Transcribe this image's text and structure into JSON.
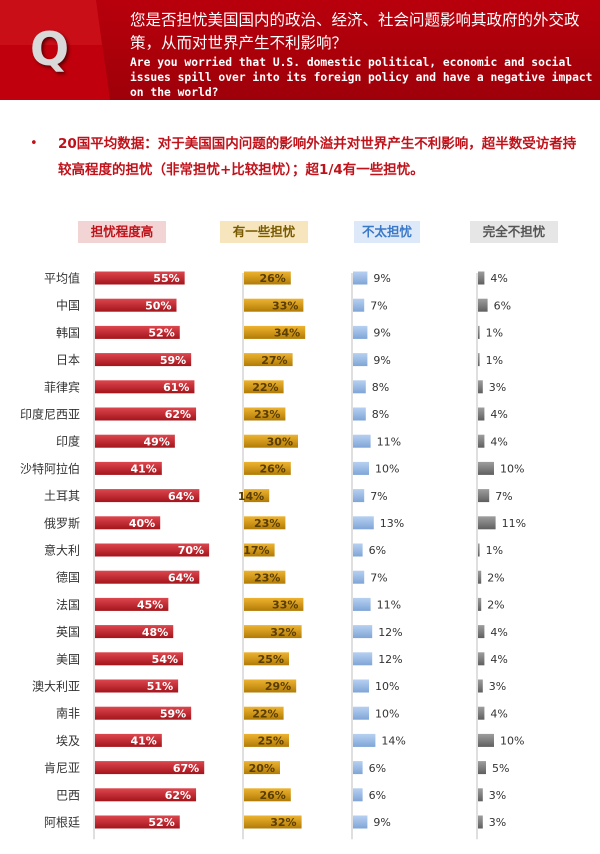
{
  "header": {
    "q_letter": "Q",
    "question_zh": "您是否担忧美国国内的政治、经济、社会问题影响其政府的外交政策，从而对世界产生不利影响？",
    "question_en": "Are you worried that U.S. domestic political, economic and social issues spill over into its foreign policy and have a negative impact on the world?"
  },
  "summary": {
    "bullet": "•",
    "text": "20国平均数据：对于美国国内问题的影响外溢并对世界产生不利影响，超半数受访者持较高程度的担忧（非常担忧+比较担忧）；超1/4有一些担忧。"
  },
  "colors": {
    "header_red": "#b0000b",
    "high": "#d6252e",
    "some": "#e9a50c",
    "notmuch": "#a9c7ee",
    "none": "#8c8c8c"
  },
  "chart_data": {
    "type": "bar",
    "categories": [
      "平均值",
      "中国",
      "韩国",
      "日本",
      "菲律宾",
      "印度尼西亚",
      "印度",
      "沙特阿拉伯",
      "土耳其",
      "俄罗斯",
      "意大利",
      "德国",
      "法国",
      "英国",
      "美国",
      "澳大利亚",
      "南非",
      "埃及",
      "肯尼亚",
      "巴西",
      "阿根廷"
    ],
    "series": [
      {
        "name": "担忧程度高",
        "values": [
          55,
          50,
          52,
          59,
          61,
          62,
          49,
          41,
          64,
          40,
          70,
          64,
          45,
          48,
          54,
          51,
          59,
          41,
          67,
          62,
          52
        ]
      },
      {
        "name": "有一些担忧",
        "values": [
          26,
          33,
          34,
          27,
          22,
          23,
          30,
          26,
          14,
          23,
          17,
          23,
          33,
          32,
          25,
          29,
          22,
          25,
          20,
          26,
          32
        ]
      },
      {
        "name": "不太担忧",
        "values": [
          9,
          7,
          9,
          9,
          8,
          8,
          11,
          10,
          7,
          13,
          6,
          7,
          11,
          12,
          12,
          10,
          10,
          14,
          6,
          6,
          9
        ]
      },
      {
        "name": "完全不担忧",
        "values": [
          4,
          6,
          1,
          1,
          3,
          4,
          4,
          10,
          7,
          11,
          1,
          2,
          2,
          4,
          4,
          3,
          4,
          10,
          5,
          3,
          3
        ]
      }
    ],
    "value_suffix": "%",
    "title": "",
    "xlabel": "",
    "ylabel": ""
  }
}
